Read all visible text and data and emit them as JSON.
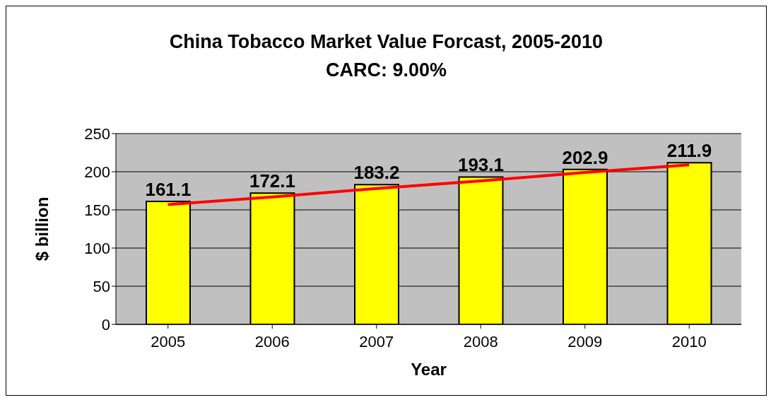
{
  "chart_data": {
    "type": "bar",
    "title": "China Tobacco Market Value Forcast, 2005-2010",
    "subtitle": "CARC: 9.00%",
    "xlabel": "Year",
    "ylabel": "$ billion",
    "categories": [
      "2005",
      "2006",
      "2007",
      "2008",
      "2009",
      "2010"
    ],
    "series": [
      {
        "color": "#ffff00",
        "values": [
          161.1,
          172.1,
          183.2,
          193.1,
          202.9,
          211.9
        ],
        "value_labels": [
          "161.1",
          "172.1",
          "183.2",
          "193.1",
          "202.9",
          "211.9"
        ]
      },
      {
        "type": "line",
        "color": "#ff0000",
        "values": [
          157,
          167,
          178,
          188,
          199,
          209
        ],
        "marker": "none"
      }
    ],
    "ylim": [
      0,
      250
    ],
    "yticks": [
      0,
      50,
      100,
      150,
      200,
      250
    ],
    "grid": "y"
  }
}
